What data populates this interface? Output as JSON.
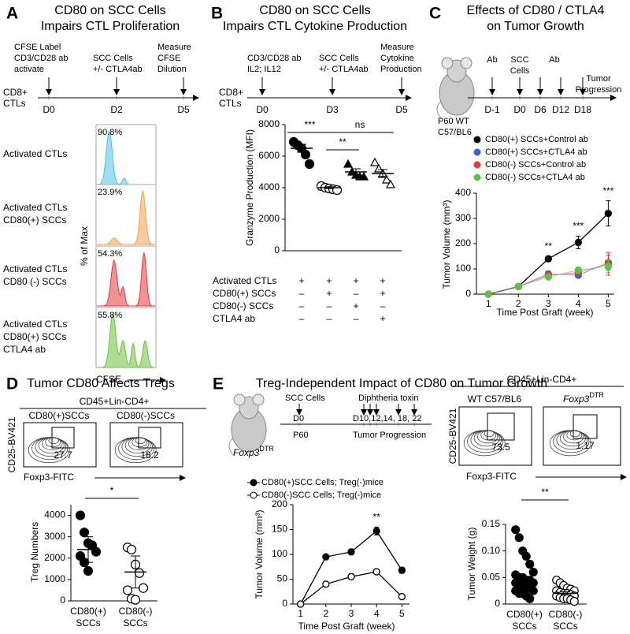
{
  "panel_a": {
    "letter": "A",
    "title": [
      "CD80 on SCC Cells",
      "Impairs CTL Proliferation"
    ],
    "timeline": {
      "cell": [
        "CD8+",
        "CTLs"
      ],
      "events": [
        {
          "text": [
            "CFSE Label",
            "CD3/CD28 ab",
            "activate"
          ],
          "day": "D0"
        },
        {
          "text": [
            "SCC Cells",
            "+/- CTLA4ab"
          ],
          "day": "D2"
        },
        {
          "text": [
            "Measure",
            "CFSE",
            "Dilution"
          ],
          "day": "D5"
        }
      ]
    },
    "histograms": [
      {
        "label": [
          "Activated CTLs"
        ],
        "percent": "90.8%",
        "color": "#4cc3ea"
      },
      {
        "label": [
          "Activated CTLs",
          "CD80(+) SCCs"
        ],
        "percent": "23.9%",
        "color": "#f2a24a"
      },
      {
        "label": [
          "Activated CTLs",
          "CD80 (-) SCCs"
        ],
        "percent": "54.3%",
        "color": "#e8383d"
      },
      {
        "label": [
          "Activated CTLs",
          "CD80(+) SCCs",
          "CTLA4 ab"
        ],
        "percent": "55.8%",
        "color": "#6cc33a"
      }
    ],
    "ylabel": "% of Max",
    "xlabel": "CFSE"
  },
  "panel_b": {
    "letter": "B",
    "title": [
      "CD80 on SCC Cells",
      "Impairs CTL Cytokine Production"
    ],
    "timeline": {
      "cell": [
        "CD8+",
        "CTLs"
      ],
      "events": [
        {
          "text": [
            "CD3/CD28 ab",
            "IL2; IL12"
          ],
          "day": "D0"
        },
        {
          "text": [
            "SCC Cells",
            "+/- CTLA4ab"
          ],
          "day": "D3"
        },
        {
          "text": [
            "Measure",
            "Cytokine",
            "Production"
          ],
          "day": "D5"
        }
      ]
    },
    "conditions": [
      {
        "label": "Activated CTLs",
        "signs": [
          "+",
          "+",
          "+",
          "+"
        ]
      },
      {
        "label": "CD80(+) SCCs",
        "signs": [
          "–",
          "+",
          "–",
          "+"
        ]
      },
      {
        "label": "CD80(-) SCCs",
        "signs": [
          "–",
          "–",
          "+",
          "–"
        ]
      },
      {
        "label": "CTLA4 ab",
        "signs": [
          "–",
          "–",
          "–",
          "+"
        ]
      }
    ]
  },
  "panel_c": {
    "letter": "C",
    "title": [
      "Effects of CD80 / CTLA4",
      "on Tumor Growth"
    ],
    "mouse": [
      "P60 WT",
      "C57/BL6"
    ],
    "timeline": {
      "days": [
        "D-1",
        "D0",
        "D6",
        "D12",
        "D18"
      ],
      "annotations": [
        [
          "Ab"
        ],
        [
          "SCC",
          "Cells"
        ],
        [
          "Ab"
        ]
      ],
      "end": [
        "Tumor",
        "Progression"
      ]
    }
  },
  "panel_d": {
    "letter": "D",
    "title": "Tumor CD80 Affects Tregs",
    "gate_header": "CD45+Lin-CD4+",
    "plots": [
      {
        "label": "CD80(+)SCCs",
        "gate": "27.7"
      },
      {
        "label": "CD80(-)SCCs",
        "gate": "18.2"
      }
    ],
    "yaxis": "CD25-BV421",
    "xaxis": "Foxp3-FITC"
  },
  "panel_e": {
    "letter": "E",
    "title": "Treg-Independent Impact of CD80 on Tumor Growth",
    "mouse": {
      "name": "Foxp3",
      "sup": "DTR"
    },
    "timeline": {
      "injection": "SCC Cells",
      "toxin": "Diphtheria toxin",
      "day0": "D0",
      "days": "D10,12,14, 18, 22",
      "age": "P60",
      "progress": "Tumor Progression"
    },
    "flow": {
      "header": "CD45+Lin-CD4+",
      "plots": [
        {
          "label": "WT C57/BL6",
          "gate": "73.5"
        },
        {
          "label": {
            "name": "Foxp3",
            "sup": "DTR"
          },
          "gate": "1.17"
        }
      ],
      "yaxis": "CD25-BV421",
      "xaxis": "Foxp3-FITC"
    }
  },
  "chart_data": [
    {
      "type": "strip",
      "ylabel": "Granzyme Production (MFI)",
      "ylim": [
        0,
        8000
      ],
      "yticks": [
        0,
        2000,
        4000,
        6000,
        8000
      ],
      "groups": [
        {
          "marker": "filled-circle",
          "values": [
            6900,
            6700,
            6500,
            6100,
            5500
          ],
          "mean": 6500,
          "error": 250
        },
        {
          "marker": "open-circle",
          "values": [
            4100,
            4000,
            3950,
            3900,
            3850
          ],
          "mean": 4000,
          "error": 60
        },
        {
          "marker": "filled-triangle",
          "values": [
            5500,
            5000,
            4800,
            4700,
            4700
          ],
          "mean": 5000,
          "error": 200
        },
        {
          "marker": "open-triangle",
          "values": [
            5600,
            5200,
            4900,
            4500,
            4200
          ],
          "mean": 4900,
          "error": 250
        }
      ],
      "significance": [
        {
          "from": 0,
          "to": 1,
          "text": "***"
        },
        {
          "from": 1,
          "to": 2,
          "text": "**"
        },
        {
          "from": 1,
          "to": 3,
          "text": "ns"
        }
      ]
    },
    {
      "type": "line",
      "ylabel": "Tumor Volume (mm³)",
      "xlabel": "Time Post Graft (week)",
      "x": [
        1,
        2,
        3,
        4,
        5
      ],
      "xlim": [
        0.6,
        5.2
      ],
      "xticks": [
        1,
        2,
        3,
        4,
        5
      ],
      "ylim": [
        0,
        400
      ],
      "yticks": [
        0,
        100,
        200,
        300,
        400
      ],
      "series": [
        {
          "name": "CD80(+) SCCs+Control ab",
          "color": "#000000",
          "marker": "filled",
          "values": [
            0,
            30,
            140,
            205,
            320
          ],
          "errors": [
            0,
            3,
            10,
            25,
            50
          ]
        },
        {
          "name": "CD80(+) SCCs+CTLA4 ab",
          "color": "#3a62c6",
          "marker": "filled",
          "values": [
            0,
            30,
            80,
            75,
            125
          ],
          "errors": [
            0,
            3,
            12,
            8,
            30
          ]
        },
        {
          "name": "CD80(-) SCCs+Control ab",
          "color": "#e8392f",
          "marker": "filled",
          "values": [
            0,
            30,
            75,
            85,
            120
          ],
          "errors": [
            0,
            3,
            10,
            10,
            45
          ]
        },
        {
          "name": "CD80(-) SCCs+CTLA4 ab",
          "color": "#5ec044",
          "marker": "filled",
          "values": [
            0,
            30,
            68,
            95,
            110
          ],
          "errors": [
            0,
            3,
            8,
            12,
            25
          ]
        }
      ],
      "annotations": [
        {
          "x": 3,
          "text": "**"
        },
        {
          "x": 4,
          "text": "***"
        },
        {
          "x": 5,
          "text": "***"
        }
      ]
    },
    {
      "type": "strip",
      "ylabel": "Treg Numbers",
      "categories": [
        [
          "CD80(+)",
          "SCCs"
        ],
        [
          "CD80(-)",
          "SCCs"
        ]
      ],
      "ylim": [
        0,
        4500
      ],
      "yticks": [
        0,
        1000,
        2000,
        3000,
        4000
      ],
      "groups": [
        {
          "marker": "filled-circle",
          "values": [
            4000,
            3200,
            2700,
            2600,
            2300,
            2100,
            1800,
            1400
          ],
          "mean": 2400,
          "error": 600
        },
        {
          "marker": "open-circle",
          "values": [
            2500,
            2400,
            1700,
            1300,
            600,
            500,
            100,
            50
          ],
          "mean": 1350,
          "error": 750
        }
      ],
      "significance": [
        {
          "from": 0,
          "to": 1,
          "text": "*"
        }
      ]
    },
    {
      "type": "line",
      "ylabel": "Tumor Volume (mm³)",
      "xlabel": "Time Post Graft (week)",
      "x": [
        1,
        2,
        3,
        4,
        5
      ],
      "xlim": [
        0.7,
        5.3
      ],
      "xticks": [
        1,
        2,
        3,
        4,
        5
      ],
      "ylim": [
        0,
        200
      ],
      "yticks": [
        0,
        50,
        100,
        150,
        200
      ],
      "series": [
        {
          "name": "CD80(+)SCC Cells; Treg(-)mice",
          "color": "#000000",
          "marker": "filled",
          "values": [
            0,
            95,
            105,
            147,
            68
          ],
          "errors": [
            0,
            4,
            6,
            8,
            6
          ]
        },
        {
          "name": "CD80(-)SCC Cells; Treg(-)mice",
          "color": "#000000",
          "marker": "open",
          "values": [
            0,
            40,
            55,
            65,
            15
          ],
          "errors": [
            0,
            3,
            6,
            5,
            3
          ]
        }
      ],
      "annotations": [
        {
          "x": 4,
          "text": "**"
        }
      ]
    },
    {
      "type": "strip",
      "ylabel": "Tumor Weight (g)",
      "categories": [
        [
          "CD80(+)",
          "SCCs"
        ],
        [
          "CD80(-)",
          "SCCs"
        ]
      ],
      "ylim": [
        0,
        0.15
      ],
      "yticks": [
        0,
        {
          "value": 0.05,
          "label": "0.05"
        },
        {
          "value": 0.1,
          "label": "0.10"
        },
        0.15
      ],
      "groups": [
        {
          "marker": "filled-circle",
          "values": [
            0.14,
            0.125,
            0.1,
            0.09,
            0.075,
            0.06,
            0.055,
            0.05,
            0.05,
            0.045,
            0.045,
            0.04,
            0.04,
            0.035,
            0.035,
            0.03,
            0.03,
            0.025,
            0.025,
            0.02,
            0.02,
            0.015,
            0.01
          ],
          "mean": 0.045,
          "error": 0.007
        },
        {
          "marker": "open-circle",
          "values": [
            0.045,
            0.04,
            0.035,
            0.03,
            0.028,
            0.025,
            0.025,
            0.022,
            0.02,
            0.02,
            0.018,
            0.015,
            0.015,
            0.012,
            0.01,
            0.01,
            0.008,
            0.005
          ],
          "mean": 0.02,
          "error": 0.003
        }
      ],
      "significance": [
        {
          "from": 0,
          "to": 1,
          "text": "**"
        }
      ]
    }
  ]
}
